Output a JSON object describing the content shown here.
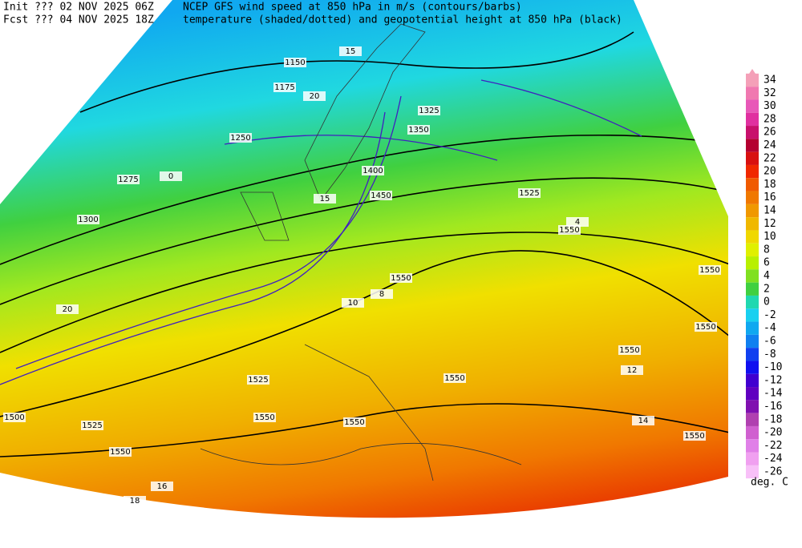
{
  "header": {
    "init": "Init  ??? 02 NOV 2025 06Z",
    "fcst": "Fcst ??? 04 NOV 2025 18Z",
    "title": "NCEP GFS wind speed at 850 hPa in m/s (contours/barbs)",
    "subtitle": "temperature (shaded/dotted) and geopotential height at 850 hPa (black)"
  },
  "colorbar": {
    "labels": [
      34,
      32,
      30,
      28,
      26,
      24,
      22,
      20,
      18,
      16,
      14,
      12,
      10,
      8,
      6,
      4,
      2,
      0,
      -2,
      -4,
      -6,
      -8,
      -10,
      -12,
      -14,
      -16,
      -18,
      -20,
      -22,
      -24,
      -26
    ],
    "colors": [
      "#f4a0b8",
      "#f078b0",
      "#e858b8",
      "#e030a0",
      "#c8106c",
      "#b40030",
      "#d81010",
      "#f02800",
      "#f05a00",
      "#f07800",
      "#f09800",
      "#f0b800",
      "#f0d800",
      "#e0f000",
      "#b8f000",
      "#80e020",
      "#40d040",
      "#20d8b0",
      "#18d0f0",
      "#10a8f0",
      "#1080f0",
      "#1040f0",
      "#1010f0",
      "#4000d0",
      "#6000c0",
      "#8010b0",
      "#b040b0",
      "#d060d0",
      "#e080e8",
      "#f0a0f0",
      "#f8c0f8"
    ],
    "unit": "deg. C"
  },
  "map_labels": [
    "1150",
    "1175",
    "1250",
    "1275",
    "1300",
    "1325",
    "1350",
    "1400",
    "1450",
    "1525",
    "1550",
    "1550",
    "1550",
    "1550",
    "1550",
    "1525",
    "1550",
    "1550",
    "1525",
    "1500",
    "1550",
    "1550",
    "1550",
    "15",
    "20",
    "20",
    "15",
    "10",
    "12",
    "14",
    "16",
    "18",
    "8",
    "4",
    "0"
  ]
}
